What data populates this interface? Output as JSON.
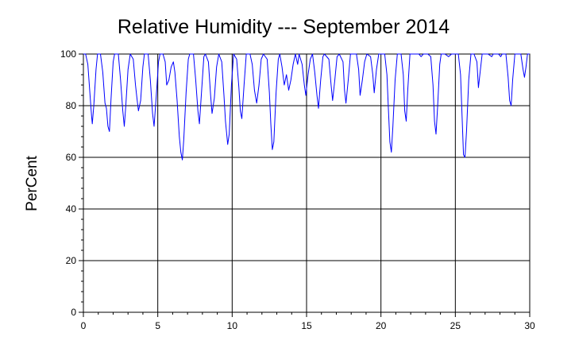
{
  "chart_data": {
    "type": "line",
    "title": "Relative Humidity --- September 2014",
    "xlabel": "",
    "ylabel": "PerCent",
    "xlim": [
      0,
      30
    ],
    "ylim": [
      0,
      100
    ],
    "x_ticks": [
      "0",
      "5",
      "10",
      "15",
      "20",
      "25",
      "30"
    ],
    "y_ticks": [
      "0",
      "20",
      "40",
      "60",
      "80",
      "100"
    ],
    "grid": true,
    "series_color": "#0000ff",
    "series": [
      {
        "values": [
          [
            0.0,
            100
          ],
          [
            0.15,
            100
          ],
          [
            0.3,
            96
          ],
          [
            0.45,
            84
          ],
          [
            0.55,
            76
          ],
          [
            0.6,
            73
          ],
          [
            0.7,
            80
          ],
          [
            0.85,
            94
          ],
          [
            0.95,
            100
          ],
          [
            1.15,
            100
          ],
          [
            1.3,
            93
          ],
          [
            1.45,
            81
          ],
          [
            1.55,
            79
          ],
          [
            1.65,
            72
          ],
          [
            1.75,
            70
          ],
          [
            1.85,
            82
          ],
          [
            2.0,
            97
          ],
          [
            2.1,
            100
          ],
          [
            2.35,
            100
          ],
          [
            2.5,
            90
          ],
          [
            2.65,
            78
          ],
          [
            2.75,
            72
          ],
          [
            2.85,
            80
          ],
          [
            3.0,
            94
          ],
          [
            3.15,
            100
          ],
          [
            3.35,
            98
          ],
          [
            3.5,
            88
          ],
          [
            3.6,
            83
          ],
          [
            3.7,
            78
          ],
          [
            3.85,
            82
          ],
          [
            4.0,
            95
          ],
          [
            4.1,
            100
          ],
          [
            4.35,
            100
          ],
          [
            4.5,
            90
          ],
          [
            4.65,
            77
          ],
          [
            4.75,
            72
          ],
          [
            4.9,
            84
          ],
          [
            5.05,
            97
          ],
          [
            5.15,
            100
          ],
          [
            5.35,
            100
          ],
          [
            5.5,
            97
          ],
          [
            5.6,
            88
          ],
          [
            5.75,
            90
          ],
          [
            5.9,
            95
          ],
          [
            6.05,
            97
          ],
          [
            6.15,
            93
          ],
          [
            6.3,
            82
          ],
          [
            6.45,
            68
          ],
          [
            6.55,
            62
          ],
          [
            6.65,
            59
          ],
          [
            6.75,
            67
          ],
          [
            6.9,
            85
          ],
          [
            7.05,
            98
          ],
          [
            7.15,
            100
          ],
          [
            7.4,
            100
          ],
          [
            7.55,
            90
          ],
          [
            7.7,
            78
          ],
          [
            7.8,
            73
          ],
          [
            7.95,
            86
          ],
          [
            8.1,
            99
          ],
          [
            8.2,
            100
          ],
          [
            8.4,
            97
          ],
          [
            8.55,
            84
          ],
          [
            8.65,
            77
          ],
          [
            8.8,
            83
          ],
          [
            8.95,
            95
          ],
          [
            9.1,
            100
          ],
          [
            9.3,
            97
          ],
          [
            9.45,
            84
          ],
          [
            9.55,
            74
          ],
          [
            9.7,
            65
          ],
          [
            9.8,
            69
          ],
          [
            9.95,
            88
          ],
          [
            10.1,
            100
          ],
          [
            10.3,
            98
          ],
          [
            10.45,
            87
          ],
          [
            10.55,
            78
          ],
          [
            10.65,
            75
          ],
          [
            10.8,
            88
          ],
          [
            10.95,
            100
          ],
          [
            11.2,
            100
          ],
          [
            11.35,
            96
          ],
          [
            11.5,
            86
          ],
          [
            11.65,
            81
          ],
          [
            11.8,
            88
          ],
          [
            11.95,
            98
          ],
          [
            12.1,
            100
          ],
          [
            12.35,
            98
          ],
          [
            12.5,
            85
          ],
          [
            12.6,
            73
          ],
          [
            12.7,
            63
          ],
          [
            12.8,
            66
          ],
          [
            12.95,
            85
          ],
          [
            13.1,
            98
          ],
          [
            13.2,
            100
          ],
          [
            13.35,
            95
          ],
          [
            13.5,
            88
          ],
          [
            13.65,
            92
          ],
          [
            13.8,
            86
          ],
          [
            13.95,
            90
          ],
          [
            14.1,
            96
          ],
          [
            14.25,
            100
          ],
          [
            14.4,
            96
          ],
          [
            14.5,
            100
          ],
          [
            14.7,
            96
          ],
          [
            14.85,
            88
          ],
          [
            14.95,
            84
          ],
          [
            15.1,
            92
          ],
          [
            15.25,
            98
          ],
          [
            15.4,
            100
          ],
          [
            15.55,
            93
          ],
          [
            15.7,
            84
          ],
          [
            15.8,
            79
          ],
          [
            15.95,
            90
          ],
          [
            16.1,
            99
          ],
          [
            16.2,
            100
          ],
          [
            16.5,
            98
          ],
          [
            16.65,
            88
          ],
          [
            16.75,
            82
          ],
          [
            16.9,
            90
          ],
          [
            17.05,
            99
          ],
          [
            17.2,
            100
          ],
          [
            17.45,
            97
          ],
          [
            17.55,
            86
          ],
          [
            17.65,
            81
          ],
          [
            17.8,
            90
          ],
          [
            17.95,
            100
          ],
          [
            18.35,
            100
          ],
          [
            18.5,
            94
          ],
          [
            18.6,
            84
          ],
          [
            18.75,
            90
          ],
          [
            18.9,
            97
          ],
          [
            19.05,
            100
          ],
          [
            19.3,
            99
          ],
          [
            19.45,
            92
          ],
          [
            19.55,
            85
          ],
          [
            19.7,
            94
          ],
          [
            19.85,
            100
          ],
          [
            20.25,
            100
          ],
          [
            20.4,
            92
          ],
          [
            20.5,
            79
          ],
          [
            20.6,
            66
          ],
          [
            20.7,
            62
          ],
          [
            20.8,
            72
          ],
          [
            20.95,
            90
          ],
          [
            21.1,
            100
          ],
          [
            21.35,
            100
          ],
          [
            21.5,
            92
          ],
          [
            21.6,
            78
          ],
          [
            21.7,
            74
          ],
          [
            21.8,
            86
          ],
          [
            21.95,
            100
          ],
          [
            22.3,
            100
          ],
          [
            22.55,
            100
          ],
          [
            22.7,
            99
          ],
          [
            22.85,
            100
          ],
          [
            23.15,
            100
          ],
          [
            23.35,
            99
          ],
          [
            23.5,
            88
          ],
          [
            23.6,
            74
          ],
          [
            23.7,
            69
          ],
          [
            23.8,
            79
          ],
          [
            23.95,
            96
          ],
          [
            24.05,
            100
          ],
          [
            24.3,
            100
          ],
          [
            24.55,
            99
          ],
          [
            24.75,
            100
          ],
          [
            25.2,
            100
          ],
          [
            25.35,
            92
          ],
          [
            25.45,
            76
          ],
          [
            25.55,
            61
          ],
          [
            25.65,
            60
          ],
          [
            25.75,
            70
          ],
          [
            25.9,
            90
          ],
          [
            26.05,
            100
          ],
          [
            26.25,
            100
          ],
          [
            26.45,
            97
          ],
          [
            26.55,
            87
          ],
          [
            26.65,
            92
          ],
          [
            26.8,
            100
          ],
          [
            27.2,
            100
          ],
          [
            27.45,
            99
          ],
          [
            27.55,
            100
          ],
          [
            27.9,
            100
          ],
          [
            28.05,
            99
          ],
          [
            28.15,
            100
          ],
          [
            28.4,
            100
          ],
          [
            28.55,
            91
          ],
          [
            28.65,
            82
          ],
          [
            28.75,
            80
          ],
          [
            28.85,
            90
          ],
          [
            29.0,
            100
          ],
          [
            29.4,
            100
          ],
          [
            29.55,
            94
          ],
          [
            29.65,
            91
          ],
          [
            29.75,
            95
          ],
          [
            29.85,
            100
          ],
          [
            30.0,
            100
          ]
        ]
      }
    ]
  }
}
